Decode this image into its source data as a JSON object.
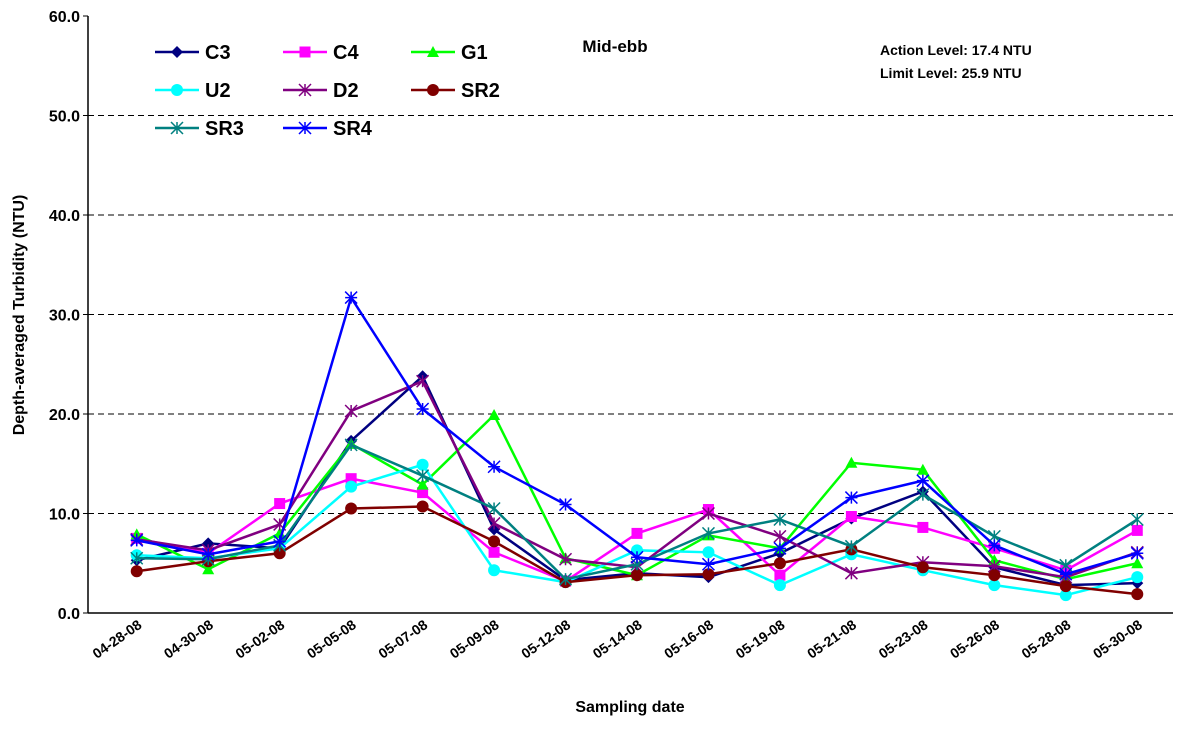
{
  "chart_data": {
    "type": "line",
    "title": "Mid-ebb",
    "annotations": [
      "Action Level: 17.4 NTU",
      "Limit Level: 25.9 NTU"
    ],
    "x_label": "Sampling date",
    "y_label": "Depth-averaged Turbidity (NTU)",
    "categories": [
      "04-28-08",
      "04-30-08",
      "05-02-08",
      "05-05-08",
      "05-07-08",
      "05-09-08",
      "05-12-08",
      "05-14-08",
      "05-16-08",
      "05-19-08",
      "05-21-08",
      "05-23-08",
      "05-26-08",
      "05-28-08",
      "05-30-08"
    ],
    "ylim": [
      0,
      60
    ],
    "yticks": [
      {
        "value": 0,
        "label": "0.0"
      },
      {
        "value": 10,
        "label": "10.0"
      },
      {
        "value": 20,
        "label": "20.0"
      },
      {
        "value": 30,
        "label": "30.0"
      },
      {
        "value": 40,
        "label": "40.0"
      },
      {
        "value": 50,
        "label": "50.0"
      },
      {
        "value": 60,
        "label": "60.0"
      }
    ],
    "grid": true,
    "legend": "top-left",
    "series": [
      {
        "name": "C3",
        "color": "#000080",
        "marker": "diamond",
        "values": [
          5.3,
          7.0,
          6.5,
          17.3,
          23.8,
          8.4,
          3.3,
          4.0,
          3.6,
          6.0,
          9.5,
          12.2,
          4.6,
          2.8,
          3.0
        ]
      },
      {
        "name": "C4",
        "color": "#ff00ff",
        "marker": "square",
        "values": [
          7.5,
          6.0,
          11.0,
          13.5,
          12.1,
          6.1,
          3.2,
          8.0,
          10.4,
          3.8,
          9.7,
          8.6,
          6.5,
          4.3,
          8.3
        ]
      },
      {
        "name": "G1",
        "color": "#00ff00",
        "marker": "triangle",
        "values": [
          7.9,
          4.4,
          8.0,
          17.0,
          12.9,
          19.9,
          5.5,
          3.8,
          7.8,
          6.5,
          15.1,
          14.4,
          5.3,
          3.4,
          5.0
        ]
      },
      {
        "name": "U2",
        "color": "#00ffff",
        "marker": "circle",
        "values": [
          5.8,
          5.5,
          6.5,
          12.7,
          14.9,
          4.3,
          3.1,
          6.3,
          6.1,
          2.8,
          5.9,
          4.3,
          2.8,
          1.8,
          3.6
        ]
      },
      {
        "name": "D2",
        "color": "#800080",
        "marker": "star",
        "values": [
          7.4,
          6.3,
          8.9,
          20.3,
          23.3,
          9.0,
          5.4,
          4.6,
          10.0,
          7.7,
          4.0,
          5.1,
          4.7,
          3.6,
          6.1
        ]
      },
      {
        "name": "SR2",
        "color": "#800000",
        "marker": "circle",
        "values": [
          4.2,
          5.2,
          6.0,
          10.5,
          10.7,
          7.2,
          3.1,
          3.8,
          3.9,
          5.0,
          6.4,
          4.6,
          3.8,
          2.7,
          1.9
        ]
      },
      {
        "name": "SR3",
        "color": "#008080",
        "marker": "star",
        "values": [
          5.5,
          5.4,
          6.8,
          16.9,
          13.8,
          10.5,
          3.4,
          4.9,
          8.0,
          9.4,
          6.7,
          11.9,
          7.7,
          4.8,
          9.4
        ]
      },
      {
        "name": "SR4",
        "color": "#0000ff",
        "marker": "xstar",
        "values": [
          7.3,
          5.9,
          7.2,
          31.7,
          20.5,
          14.7,
          10.9,
          5.6,
          4.9,
          6.5,
          11.6,
          13.3,
          6.8,
          3.9,
          6.0
        ]
      }
    ]
  }
}
